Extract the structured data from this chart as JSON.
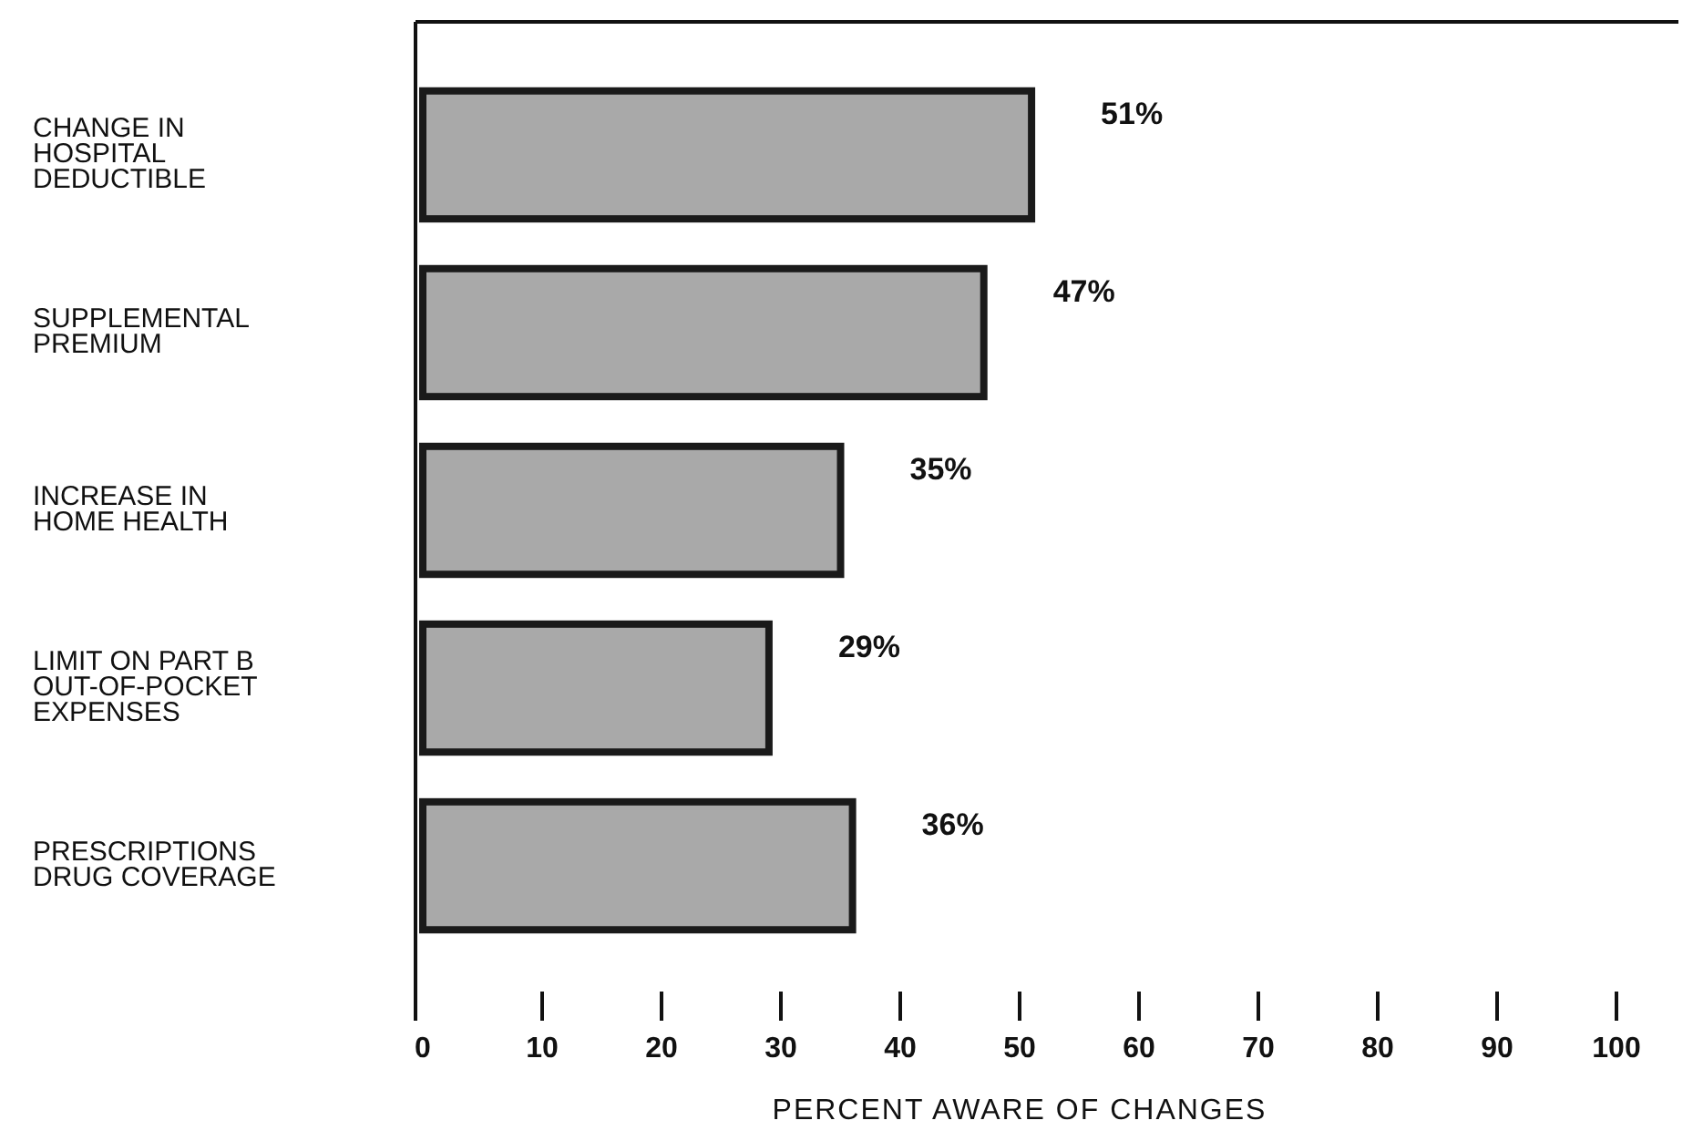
{
  "chart_data": {
    "type": "bar",
    "orientation": "horizontal",
    "xlabel": "PERCENT AWARE OF CHANGES",
    "categories": [
      "CHANGE IN HOSPITAL DEDUCTIBLE",
      "SUPPLEMENTAL PREMIUM",
      "INCREASE IN HOME HEALTH",
      "LIMIT ON PART B OUT-OF-POCKET EXPENSES",
      "PRESCRIPTIONS DRUG COVERAGE"
    ],
    "values": [
      51,
      47,
      35,
      29,
      36
    ],
    "value_labels": [
      "51%",
      "47%",
      "35%",
      "29%",
      "36%"
    ],
    "color": "#a9a9a9",
    "xlim": [
      0,
      100
    ],
    "xticks": [
      0,
      10,
      20,
      30,
      40,
      50,
      60,
      70,
      80,
      90,
      100
    ]
  }
}
